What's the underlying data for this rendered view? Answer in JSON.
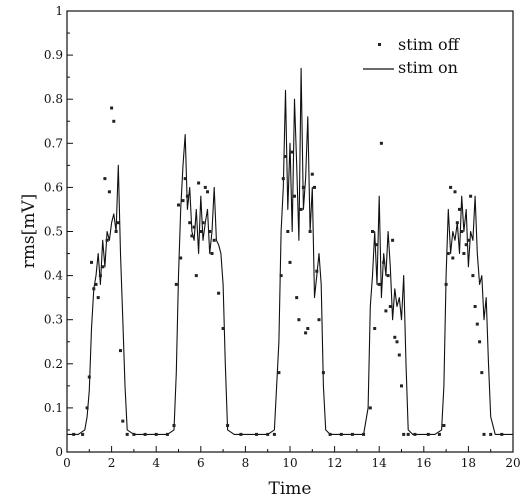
{
  "chart_data": {
    "type": "line",
    "title": "",
    "xlabel": "Time",
    "ylabel": "rms[mV]",
    "xlim": [
      0,
      20
    ],
    "ylim": [
      0,
      1
    ],
    "x_ticks": [
      "0",
      "2",
      "4",
      "6",
      "8",
      "10",
      "12",
      "14",
      "16",
      "18",
      "20"
    ],
    "y_ticks": [
      "0",
      "0.1",
      "0.2",
      "0.3",
      "0.4",
      "0.5",
      "0.6",
      "0.7",
      "0.8",
      "0.9",
      "1"
    ],
    "grid": false,
    "legend": {
      "position": "top-right",
      "entries": [
        "stim off",
        "stim on"
      ]
    },
    "series": [
      {
        "name": "stim off",
        "style": "scatter",
        "x": [
          0.3,
          0.7,
          0.9,
          1.0,
          1.1,
          1.2,
          1.3,
          1.4,
          1.5,
          1.6,
          1.7,
          1.8,
          1.9,
          2.0,
          2.1,
          2.2,
          2.3,
          2.4,
          2.5,
          2.7,
          3.0,
          3.5,
          4.0,
          4.5,
          4.8,
          4.9,
          5.0,
          5.1,
          5.2,
          5.3,
          5.4,
          5.5,
          5.6,
          5.7,
          5.8,
          5.9,
          6.0,
          6.1,
          6.2,
          6.3,
          6.4,
          6.5,
          6.6,
          6.8,
          7.0,
          7.2,
          7.8,
          8.5,
          9.0,
          9.3,
          9.5,
          9.6,
          9.7,
          9.8,
          9.9,
          10.0,
          10.1,
          10.2,
          10.3,
          10.4,
          10.5,
          10.6,
          10.7,
          10.8,
          10.9,
          11.0,
          11.1,
          11.2,
          11.3,
          11.5,
          11.8,
          12.3,
          12.8,
          13.3,
          13.6,
          13.7,
          13.8,
          13.9,
          14.0,
          14.1,
          14.2,
          14.3,
          14.4,
          14.5,
          14.6,
          14.7,
          14.8,
          14.9,
          15.0,
          15.1,
          15.3,
          15.6,
          16.2,
          16.7,
          16.9,
          17.0,
          17.1,
          17.2,
          17.3,
          17.4,
          17.5,
          17.6,
          17.7,
          17.8,
          17.9,
          18.0,
          18.1,
          18.2,
          18.3,
          18.4,
          18.5,
          18.6,
          18.7,
          19.0,
          19.5
        ],
        "values": [
          0.04,
          0.04,
          0.1,
          0.17,
          0.43,
          0.37,
          0.38,
          0.35,
          0.4,
          0.42,
          0.62,
          0.48,
          0.59,
          0.78,
          0.75,
          0.5,
          0.52,
          0.23,
          0.07,
          0.04,
          0.04,
          0.04,
          0.04,
          0.04,
          0.06,
          0.38,
          0.56,
          0.44,
          0.57,
          0.62,
          0.58,
          0.52,
          0.49,
          0.51,
          0.4,
          0.61,
          0.5,
          0.52,
          0.6,
          0.59,
          0.5,
          0.45,
          0.48,
          0.36,
          0.28,
          0.06,
          0.04,
          0.04,
          0.04,
          0.04,
          0.18,
          0.4,
          0.62,
          0.67,
          0.5,
          0.43,
          0.68,
          0.58,
          0.35,
          0.3,
          0.55,
          0.6,
          0.27,
          0.28,
          0.5,
          0.63,
          0.6,
          0.41,
          0.3,
          0.18,
          0.04,
          0.04,
          0.04,
          0.04,
          0.1,
          0.5,
          0.28,
          0.47,
          0.38,
          0.7,
          0.43,
          0.32,
          0.4,
          0.33,
          0.48,
          0.26,
          0.25,
          0.22,
          0.15,
          0.04,
          0.04,
          0.04,
          0.04,
          0.04,
          0.06,
          0.38,
          0.45,
          0.6,
          0.44,
          0.59,
          0.52,
          0.55,
          0.5,
          0.45,
          0.47,
          0.48,
          0.58,
          0.4,
          0.33,
          0.29,
          0.25,
          0.18,
          0.04,
          0.04,
          0.04
        ]
      },
      {
        "name": "stim on",
        "style": "line",
        "x": [
          0.0,
          0.5,
          0.8,
          0.9,
          1.0,
          1.1,
          1.2,
          1.3,
          1.4,
          1.5,
          1.6,
          1.7,
          1.8,
          1.9,
          2.0,
          2.1,
          2.2,
          2.3,
          2.4,
          2.5,
          2.6,
          2.7,
          3.0,
          3.5,
          4.0,
          4.5,
          4.8,
          4.9,
          5.0,
          5.1,
          5.2,
          5.3,
          5.4,
          5.5,
          5.6,
          5.7,
          5.8,
          5.9,
          6.0,
          6.1,
          6.2,
          6.3,
          6.4,
          6.5,
          6.6,
          6.7,
          6.8,
          6.9,
          7.0,
          7.1,
          7.2,
          7.5,
          8.0,
          8.5,
          9.0,
          9.3,
          9.5,
          9.6,
          9.7,
          9.8,
          9.9,
          10.0,
          10.1,
          10.2,
          10.3,
          10.4,
          10.5,
          10.6,
          10.7,
          10.8,
          10.9,
          11.0,
          11.1,
          11.2,
          11.3,
          11.4,
          11.5,
          11.6,
          11.8,
          12.3,
          12.8,
          13.3,
          13.5,
          13.6,
          13.7,
          13.8,
          13.9,
          14.0,
          14.1,
          14.2,
          14.3,
          14.4,
          14.5,
          14.6,
          14.7,
          14.8,
          14.9,
          15.0,
          15.1,
          15.2,
          15.3,
          15.5,
          16.0,
          16.5,
          16.8,
          16.9,
          17.0,
          17.1,
          17.2,
          17.3,
          17.4,
          17.5,
          17.6,
          17.7,
          17.8,
          17.9,
          18.0,
          18.1,
          18.2,
          18.3,
          18.4,
          18.5,
          18.6,
          18.7,
          18.8,
          18.9,
          19.0,
          19.2,
          20.0
        ],
        "values": [
          0.04,
          0.04,
          0.05,
          0.08,
          0.14,
          0.28,
          0.37,
          0.4,
          0.45,
          0.38,
          0.48,
          0.42,
          0.5,
          0.48,
          0.52,
          0.54,
          0.5,
          0.65,
          0.45,
          0.3,
          0.15,
          0.05,
          0.04,
          0.04,
          0.04,
          0.04,
          0.05,
          0.18,
          0.4,
          0.55,
          0.65,
          0.72,
          0.55,
          0.6,
          0.5,
          0.48,
          0.55,
          0.45,
          0.58,
          0.48,
          0.52,
          0.55,
          0.45,
          0.5,
          0.6,
          0.48,
          0.47,
          0.45,
          0.38,
          0.2,
          0.05,
          0.04,
          0.04,
          0.04,
          0.04,
          0.05,
          0.25,
          0.5,
          0.6,
          0.82,
          0.55,
          0.7,
          0.5,
          0.8,
          0.65,
          0.48,
          0.87,
          0.55,
          0.62,
          0.76,
          0.5,
          0.6,
          0.35,
          0.4,
          0.45,
          0.38,
          0.15,
          0.05,
          0.04,
          0.04,
          0.04,
          0.04,
          0.1,
          0.33,
          0.4,
          0.5,
          0.38,
          0.58,
          0.35,
          0.45,
          0.4,
          0.5,
          0.42,
          0.3,
          0.37,
          0.33,
          0.35,
          0.3,
          0.4,
          0.2,
          0.05,
          0.04,
          0.04,
          0.04,
          0.05,
          0.15,
          0.4,
          0.55,
          0.45,
          0.5,
          0.48,
          0.52,
          0.45,
          0.58,
          0.5,
          0.55,
          0.42,
          0.5,
          0.48,
          0.58,
          0.45,
          0.38,
          0.4,
          0.3,
          0.35,
          0.2,
          0.08,
          0.04,
          0.04
        ]
      }
    ]
  }
}
